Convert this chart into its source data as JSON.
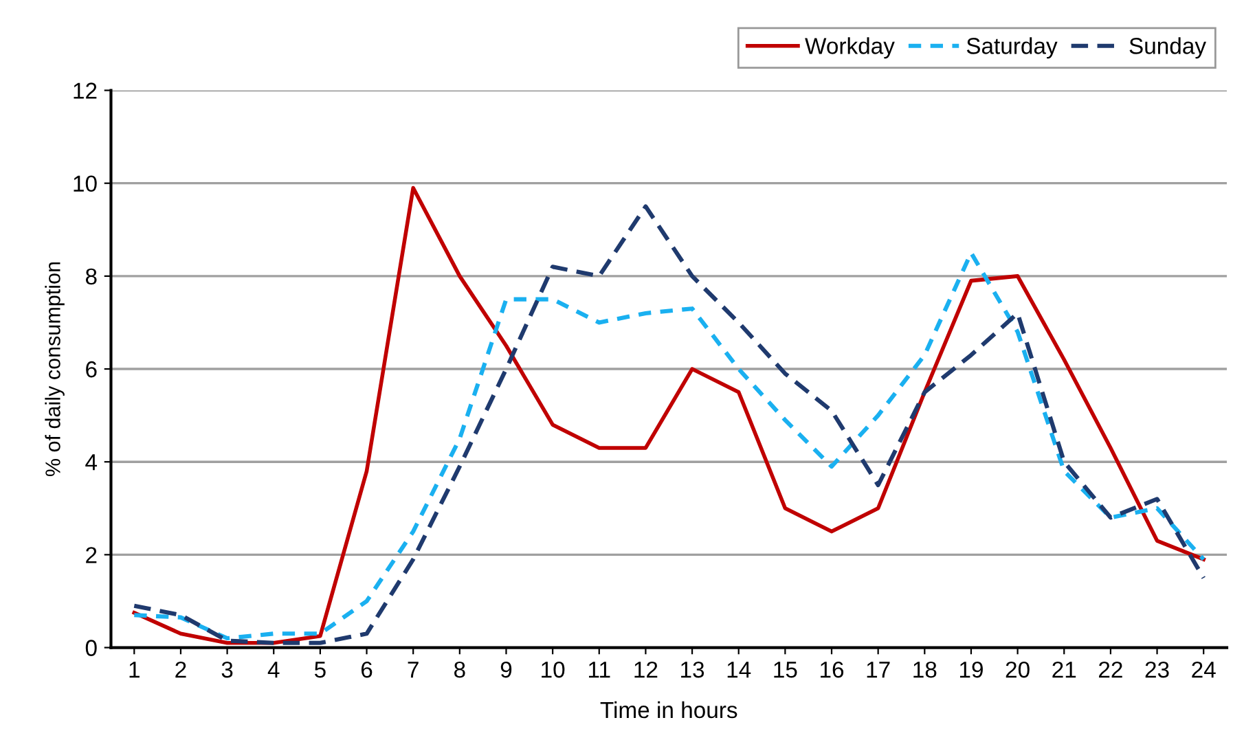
{
  "chart_data": {
    "type": "line",
    "xlabel": "Time in hours",
    "ylabel": "% of daily consumption",
    "categories": [
      "1",
      "2",
      "3",
      "4",
      "5",
      "6",
      "7",
      "8",
      "9",
      "10",
      "11",
      "12",
      "13",
      "14",
      "15",
      "16",
      "17",
      "18",
      "19",
      "20",
      "21",
      "22",
      "23",
      "24"
    ],
    "ylim": [
      0,
      12
    ],
    "yticks": [
      0,
      2,
      4,
      6,
      8,
      10,
      12
    ],
    "grid": "y",
    "legend": "top right",
    "marker": "none",
    "series": [
      {
        "name": "Workday",
        "color": "#c00000",
        "line_style": "solid",
        "values": [
          0.75,
          0.3,
          0.1,
          0.1,
          0.25,
          3.8,
          9.9,
          8.0,
          6.5,
          4.8,
          4.3,
          4.3,
          6.0,
          5.5,
          3.0,
          2.5,
          3.0,
          5.5,
          7.9,
          8.0,
          6.2,
          4.3,
          2.3,
          1.9
        ]
      },
      {
        "name": "Saturday",
        "color": "#1ab0f0",
        "line_style": "dashed",
        "values": [
          0.7,
          0.65,
          0.2,
          0.3,
          0.3,
          1.0,
          2.5,
          4.5,
          7.5,
          7.5,
          7.0,
          7.2,
          7.3,
          6.0,
          4.9,
          3.9,
          5.0,
          6.3,
          8.5,
          6.8,
          3.8,
          2.8,
          3.0,
          1.9
        ]
      },
      {
        "name": "Sunday",
        "color": "#1f3a6e",
        "line_style": "dashed",
        "values": [
          0.9,
          0.7,
          0.15,
          0.1,
          0.1,
          0.3,
          1.9,
          3.9,
          6.0,
          8.2,
          8.0,
          9.5,
          8.0,
          7.0,
          5.9,
          5.1,
          3.5,
          5.5,
          6.3,
          7.2,
          4.0,
          2.8,
          3.2,
          1.5
        ]
      }
    ]
  }
}
